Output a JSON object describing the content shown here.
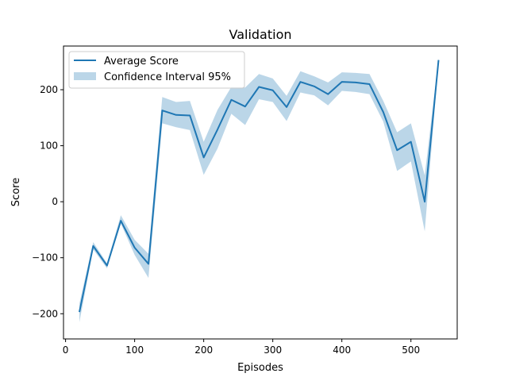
{
  "chart_data": {
    "type": "line",
    "title": "Validation",
    "xlabel": "Episodes",
    "ylabel": "Score",
    "xlim": [
      -3,
      567
    ],
    "ylim": [
      -245,
      278
    ],
    "xticks": [
      0,
      100,
      200,
      300,
      400,
      500
    ],
    "yticks": [
      -200,
      -100,
      0,
      100,
      200
    ],
    "grid": false,
    "legend": "top-left",
    "colors": {
      "line": "#1f77b4",
      "band": "#1f77b4",
      "band_alpha": 0.3
    },
    "series": [
      {
        "name": "Average Score",
        "kind": "line",
        "x": [
          20,
          40,
          60,
          80,
          100,
          120,
          140,
          160,
          180,
          200,
          220,
          240,
          260,
          280,
          300,
          320,
          340,
          360,
          380,
          400,
          420,
          440,
          460,
          480,
          500,
          520,
          540
        ],
        "y": [
          -197,
          -79,
          -114,
          -34,
          -82,
          -111,
          163,
          155,
          154,
          79,
          129,
          182,
          170,
          205,
          199,
          169,
          214,
          206,
          192,
          214,
          213,
          210,
          160,
          92,
          107,
          0,
          253
        ]
      },
      {
        "name": "Confidence Interval 95%",
        "kind": "band",
        "x": [
          20,
          40,
          60,
          80,
          100,
          120,
          140,
          160,
          180,
          200,
          220,
          240,
          260,
          280,
          300,
          320,
          340,
          360,
          380,
          400,
          420,
          440,
          460,
          480,
          500,
          520,
          540
        ],
        "lower": [
          -215,
          -85,
          -119,
          -39,
          -95,
          -136,
          140,
          133,
          128,
          48,
          95,
          157,
          137,
          183,
          178,
          144,
          195,
          190,
          172,
          198,
          196,
          192,
          143,
          55,
          72,
          -53,
          250
        ],
        "upper": [
          -182,
          -72,
          -110,
          -24,
          -68,
          -93,
          187,
          178,
          180,
          107,
          164,
          205,
          204,
          228,
          220,
          189,
          233,
          224,
          213,
          231,
          230,
          228,
          180,
          124,
          140,
          47,
          256
        ]
      }
    ]
  }
}
